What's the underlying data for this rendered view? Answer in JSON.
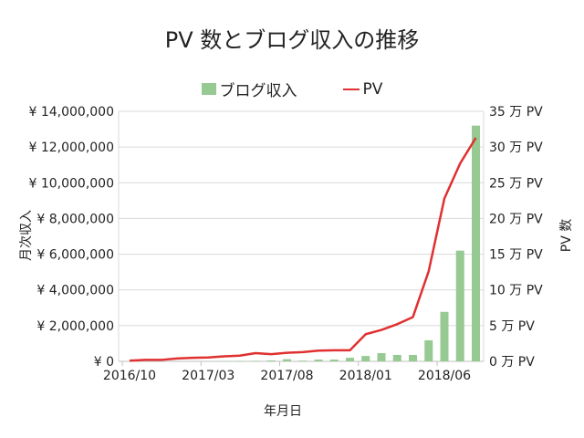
{
  "chart_data": {
    "type": "bar+line",
    "title": "PV 数とブログ収入の推移",
    "xlabel": "年月日",
    "ylabel_left": "月次収入",
    "ylabel_right": "PV 数",
    "legend_position": "top",
    "grid": true,
    "categories": [
      "2016/10",
      "2016/11",
      "2016/12",
      "2017/01",
      "2017/02",
      "2017/03",
      "2017/04",
      "2017/05",
      "2017/06",
      "2017/07",
      "2017/08",
      "2017/09",
      "2017/10",
      "2017/11",
      "2017/12",
      "2018/01",
      "2018/02",
      "2018/03",
      "2018/04",
      "2018/05",
      "2018/06",
      "2018/07",
      "2018/08"
    ],
    "x_tick_labels": [
      "2016/10",
      "2017/03",
      "2017/08",
      "2018/01",
      "2018/06"
    ],
    "left_axis": {
      "ylim": [
        0,
        14000000
      ],
      "tick_labels": [
        "¥ 0",
        "¥ 2,000,000",
        "¥ 4,000,000",
        "¥ 6,000,000",
        "¥ 8,000,000",
        "¥ 10,000,000",
        "¥ 12,000,000",
        "¥ 14,000,000"
      ]
    },
    "right_axis": {
      "ylim": [
        0,
        35
      ],
      "tick_labels": [
        "0 万 PV",
        "5 万 PV",
        "10 万 PV",
        "15 万 PV",
        "20 万 PV",
        "25 万 PV",
        "30 万 PV",
        "35 万 PV"
      ]
    },
    "series": [
      {
        "name": "ブログ収入",
        "type": "bar",
        "axis": "left",
        "color": "#97c993",
        "values": [
          0,
          0,
          0,
          0,
          5000,
          10000,
          15000,
          20000,
          30000,
          50000,
          120000,
          40000,
          100000,
          100000,
          200000,
          300000,
          460000,
          360000,
          360000,
          1180000,
          2770000,
          6200000,
          13200000
        ]
      },
      {
        "name": "PV",
        "type": "line",
        "axis": "right",
        "color": "#e03030",
        "values": [
          0.1,
          0.2,
          0.2,
          0.4,
          0.5,
          0.55,
          0.7,
          0.8,
          1.15,
          1.0,
          1.2,
          1.3,
          1.5,
          1.55,
          1.55,
          3.8,
          4.4,
          5.2,
          6.2,
          12.6,
          22.8,
          27.7,
          31.3
        ]
      }
    ]
  }
}
